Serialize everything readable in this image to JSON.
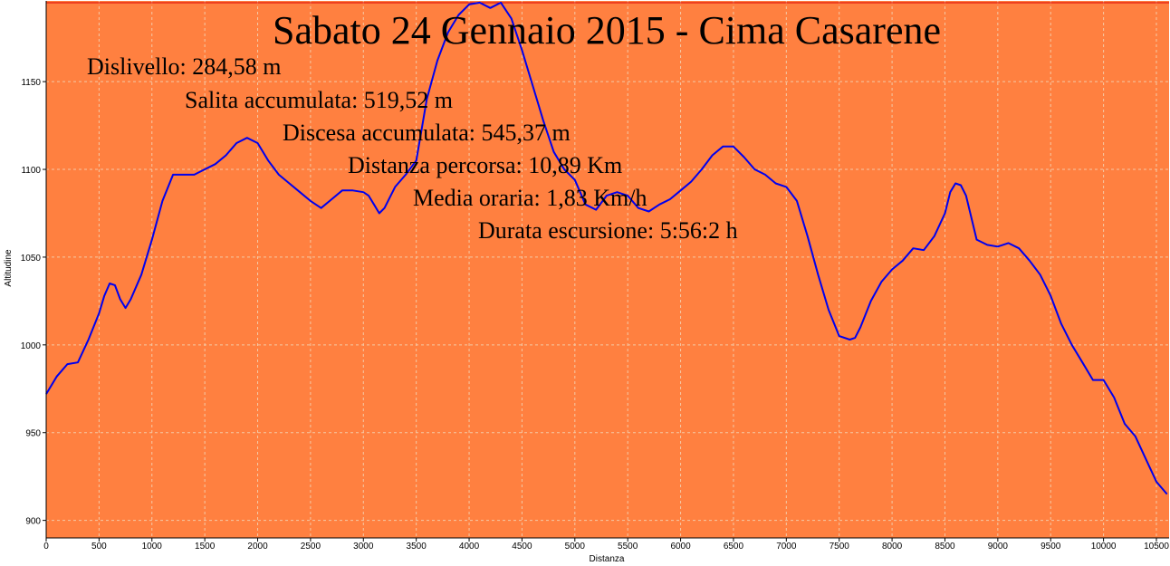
{
  "chart_data": {
    "type": "line",
    "title": "Sabato 24 Gennaio 2015 - Cima Casarene",
    "info_lines": [
      "Dislivello: 284,58 m",
      "Salita accumulata: 519,52 m",
      "Discesa accumulata: 545,37 m",
      "Distanza percorsa: 10,89 Km",
      "Media oraria: 1,83 Km/h",
      "Durata escursione: 5:56:2 h"
    ],
    "xlabel": "Distanza",
    "ylabel": "Altitudine",
    "xlim": [
      0,
      10620
    ],
    "ylim": [
      890,
      1196
    ],
    "x_ticks": [
      0,
      500,
      1000,
      1500,
      2000,
      2500,
      3000,
      3500,
      4000,
      4500,
      5000,
      5500,
      6000,
      6500,
      7000,
      7500,
      8000,
      8500,
      9000,
      9500,
      10000,
      10500
    ],
    "y_ticks": [
      900,
      950,
      1000,
      1050,
      1100,
      1150
    ],
    "grid": true,
    "colors": {
      "plot_background": "#ff8040",
      "line": "#0000ee",
      "max_line": "#dd0000",
      "grid": "#f4c9a6"
    },
    "series": [
      {
        "x": [
          0,
          100,
          200,
          300,
          400,
          500,
          550,
          600,
          650,
          700,
          750,
          800,
          900,
          1000,
          1100,
          1200,
          1300,
          1400,
          1500,
          1600,
          1700,
          1800,
          1900,
          2000,
          2100,
          2200,
          2300,
          2400,
          2500,
          2600,
          2700,
          2800,
          2900,
          3000,
          3050,
          3100,
          3150,
          3200,
          3300,
          3400,
          3500,
          3600,
          3700,
          3800,
          3900,
          4000,
          4100,
          4200,
          4300,
          4400,
          4500,
          4600,
          4700,
          4800,
          4900,
          5000,
          5100,
          5200,
          5300,
          5400,
          5500,
          5600,
          5700,
          5800,
          5900,
          6000,
          6100,
          6200,
          6300,
          6400,
          6500,
          6600,
          6700,
          6800,
          6900,
          7000,
          7100,
          7200,
          7300,
          7400,
          7500,
          7600,
          7650,
          7700,
          7800,
          7900,
          8000,
          8100,
          8200,
          8300,
          8400,
          8500,
          8550,
          8600,
          8650,
          8700,
          8800,
          8900,
          9000,
          9100,
          9200,
          9300,
          9400,
          9500,
          9600,
          9700,
          9800,
          9900,
          10000,
          10100,
          10200,
          10300,
          10400,
          10500,
          10600
        ],
        "y": [
          972,
          982,
          989,
          990,
          1003,
          1018,
          1028,
          1035,
          1034,
          1026,
          1021,
          1026,
          1040,
          1060,
          1082,
          1097,
          1097,
          1097,
          1100,
          1103,
          1108,
          1115,
          1118,
          1115,
          1105,
          1097,
          1092,
          1087,
          1082,
          1078,
          1083,
          1088,
          1088,
          1087,
          1085,
          1080,
          1075,
          1078,
          1090,
          1097,
          1105,
          1140,
          1162,
          1178,
          1188,
          1194,
          1195,
          1192,
          1195,
          1186,
          1168,
          1148,
          1128,
          1110,
          1100,
          1094,
          1080,
          1077,
          1085,
          1087,
          1085,
          1078,
          1076,
          1080,
          1083,
          1088,
          1093,
          1100,
          1108,
          1113,
          1113,
          1107,
          1100,
          1097,
          1092,
          1090,
          1082,
          1062,
          1040,
          1020,
          1005,
          1003,
          1004,
          1010,
          1025,
          1036,
          1043,
          1048,
          1055,
          1054,
          1062,
          1075,
          1087,
          1092,
          1091,
          1085,
          1060,
          1057,
          1056,
          1058,
          1055,
          1048,
          1040,
          1028,
          1012,
          1000,
          990,
          980,
          980,
          970,
          955,
          948,
          935,
          922,
          915
        ]
      }
    ]
  }
}
